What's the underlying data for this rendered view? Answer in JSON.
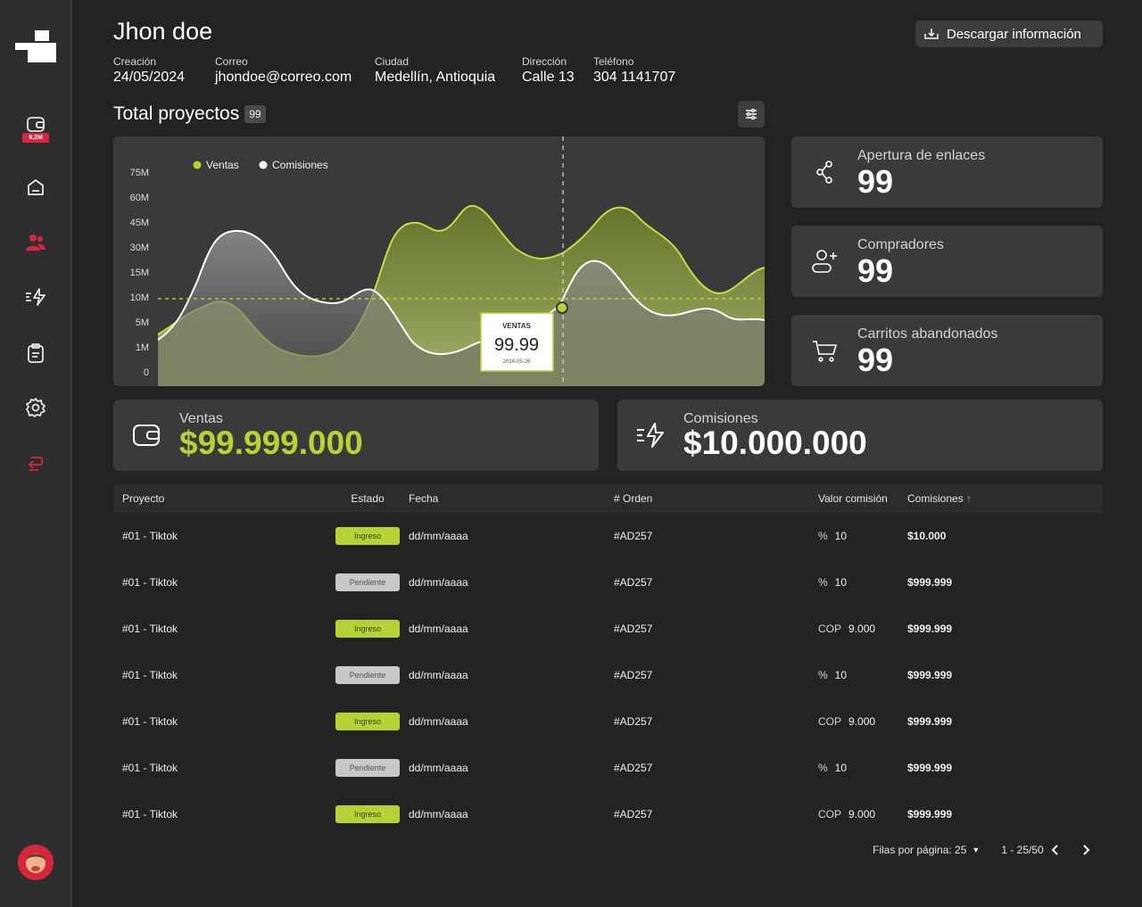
{
  "user": {
    "name": "Jhon doe",
    "info": [
      {
        "label": "Creación",
        "value": "24/05/2024"
      },
      {
        "label": "Correo",
        "value": "jhondoe@correo.com"
      },
      {
        "label": "Ciudad",
        "value": "Medellín, Antioquia"
      },
      {
        "label": "Dirección",
        "value": "Calle 13"
      },
      {
        "label": "Teléfono",
        "value": "304 1141707"
      }
    ]
  },
  "sidebar": {
    "wallet_badge": "9.2M",
    "items": [
      {
        "name": "wallet-icon"
      },
      {
        "name": "home-icon"
      },
      {
        "name": "users-icon",
        "active": true
      },
      {
        "name": "commissions-icon"
      },
      {
        "name": "clipboard-icon"
      },
      {
        "name": "settings-icon"
      },
      {
        "name": "logout-icon"
      }
    ]
  },
  "toolbar": {
    "download_label": "Descargar información"
  },
  "projects": {
    "title": "Total proyectos",
    "count": "99"
  },
  "colors": {
    "accent": "#b5d334",
    "danger": "#d7263d"
  },
  "chart_data": {
    "type": "area",
    "legend": [
      "Ventas",
      "Comisiones"
    ],
    "y_ticks": [
      "75M",
      "60M",
      "45M",
      "30M",
      "15M",
      "10M",
      "5M",
      "1M",
      "0"
    ],
    "tooltip": {
      "label": "VENTAS",
      "value": "99.99",
      "date": "2024-05-26"
    }
  },
  "stats": [
    {
      "label": "Apertura de enlaces",
      "value": "99",
      "icon": "share-icon"
    },
    {
      "label": "Compradores",
      "value": "99",
      "icon": "user-add-icon"
    },
    {
      "label": "Carritos abandonados",
      "value": "99",
      "icon": "cart-icon"
    }
  ],
  "totals": {
    "ventas": {
      "label": "Ventas",
      "value": "$99.999.000"
    },
    "comisiones": {
      "label": "Comisiones",
      "value": "$10.000.000"
    }
  },
  "table": {
    "headers": [
      "Proyecto",
      "Estado",
      "Fecha",
      "# Orden",
      "Valor comisión",
      "Comisiones"
    ],
    "rows": [
      {
        "proyecto": "#01 - Tiktok",
        "estado": "Ingreso",
        "fecha": "dd/mm/aaaa",
        "orden": "#AD257",
        "unit": "%",
        "valor": "10",
        "comision": "$10.000"
      },
      {
        "proyecto": "#01 - Tiktok",
        "estado": "Pendiente",
        "fecha": "dd/mm/aaaa",
        "orden": "#AD257",
        "unit": "%",
        "valor": "10",
        "comision": "$999.999"
      },
      {
        "proyecto": "#01 - Tiktok",
        "estado": "Ingreso",
        "fecha": "dd/mm/aaaa",
        "orden": "#AD257",
        "unit": "COP",
        "valor": "9.000",
        "comision": "$999.999"
      },
      {
        "proyecto": "#01 - Tiktok",
        "estado": "Pendiente",
        "fecha": "dd/mm/aaaa",
        "orden": "#AD257",
        "unit": "%",
        "valor": "10",
        "comision": "$999.999"
      },
      {
        "proyecto": "#01 - Tiktok",
        "estado": "Ingreso",
        "fecha": "dd/mm/aaaa",
        "orden": "#AD257",
        "unit": "COP",
        "valor": "9.000",
        "comision": "$999.999"
      },
      {
        "proyecto": "#01 - Tiktok",
        "estado": "Pendiente",
        "fecha": "dd/mm/aaaa",
        "orden": "#AD257",
        "unit": "%",
        "valor": "10",
        "comision": "$999.999"
      },
      {
        "proyecto": "#01 - Tiktok",
        "estado": "Ingreso",
        "fecha": "dd/mm/aaaa",
        "orden": "#AD257",
        "unit": "COP",
        "valor": "9.000",
        "comision": "$999.999"
      }
    ]
  },
  "pagination": {
    "rows_per_page": "Filas por página: 25",
    "range": "1 - 25/50"
  }
}
